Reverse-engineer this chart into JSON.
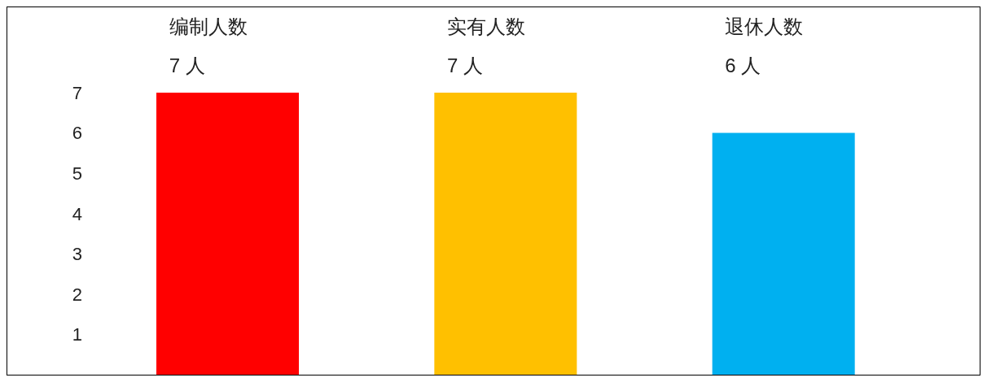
{
  "chart_data": {
    "type": "bar",
    "categories": [
      "编制人数",
      "实有人数",
      "退休人数"
    ],
    "values": [
      7,
      7,
      6
    ],
    "colors": [
      "#ff0000",
      "#ffc000",
      "#00b0f0"
    ],
    "value_labels": [
      "7 人",
      "7 人",
      "6 人"
    ],
    "ylim": [
      0,
      7
    ],
    "yticks": [
      1,
      2,
      3,
      4,
      5,
      6,
      7
    ],
    "grid": false,
    "legend": false
  }
}
